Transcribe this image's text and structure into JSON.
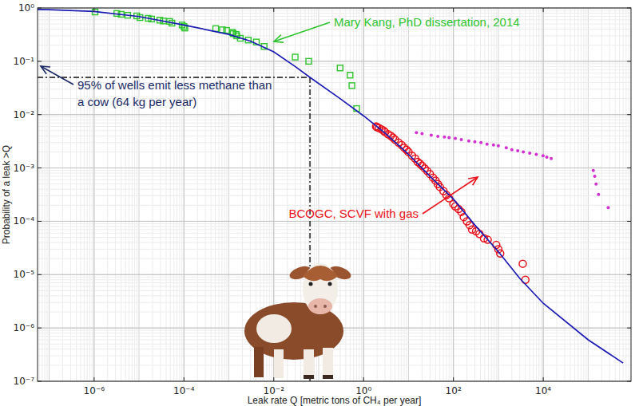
{
  "chart_data": {
    "type": "scatter",
    "xlabel": "Leak rate Q [metric tons of CH₄ per year]",
    "ylabel": "Probability of a leak >Q",
    "log": true,
    "grid": true,
    "xlim": [
      5.5e-08,
      900000
    ],
    "ylim": [
      1e-07,
      1
    ],
    "xticks": [
      {
        "value": 1e-06,
        "label": "10⁻⁶"
      },
      {
        "value": 0.0001,
        "label": "10⁻⁴"
      },
      {
        "value": 0.01,
        "label": "10⁻²"
      },
      {
        "value": 1,
        "label": "10⁰"
      },
      {
        "value": 100,
        "label": "10²"
      },
      {
        "value": 10000,
        "label": "10⁴"
      }
    ],
    "yticks": [
      {
        "value": 1e-07,
        "label": "10⁻⁷"
      },
      {
        "value": 1e-06,
        "label": "10⁻⁶"
      },
      {
        "value": 1e-05,
        "label": "10⁻⁵"
      },
      {
        "value": 0.0001,
        "label": "10⁻⁴"
      },
      {
        "value": 0.001,
        "label": "10⁻³"
      },
      {
        "value": 0.01,
        "label": "10⁻²"
      },
      {
        "value": 0.1,
        "label": "10⁻¹"
      },
      {
        "value": 1,
        "label": "10⁰"
      }
    ],
    "series": [
      {
        "name": "Mary Kang, PhD dissertation, 2014",
        "type": "scatter",
        "marker": "square-open",
        "color": "#2fc42f",
        "x": [
          1.05e-06,
          3.2e-06,
          4e-06,
          5.6e-06,
          8.9e-06,
          1.05e-05,
          1.6e-05,
          1.9e-05,
          2.9e-05,
          3.5e-05,
          4.8e-05,
          5.4e-05,
          9.1e-05,
          0.0001,
          0.000105,
          0.00051,
          0.00072,
          0.00089,
          0.0012,
          0.00125,
          0.00145,
          0.0015,
          0.0018,
          0.0027,
          0.0041,
          0.0061,
          0.03,
          0.06,
          0.3,
          0.5,
          0.55,
          0.7
        ],
        "values": [
          0.84,
          0.79,
          0.76,
          0.73,
          0.71,
          0.66,
          0.64,
          0.62,
          0.59,
          0.57,
          0.56,
          0.52,
          0.48,
          0.45,
          0.42,
          0.41,
          0.39,
          0.38,
          0.35,
          0.33,
          0.32,
          0.3,
          0.27,
          0.25,
          0.23,
          0.19,
          0.12,
          0.1,
          0.075,
          0.055,
          0.035,
          0.013
        ]
      },
      {
        "name": "BCOGC, SCVF with gas",
        "type": "scatter",
        "marker": "circle-open",
        "color": "#e8121b",
        "x": [
          1.9,
          2,
          2.2,
          2.5,
          2.8,
          3,
          3.5,
          4,
          4.5,
          5,
          6,
          7,
          8,
          9,
          10,
          12,
          14,
          16,
          18,
          20,
          23,
          26,
          30,
          35,
          40,
          45,
          50,
          60,
          70,
          80,
          100,
          110,
          130,
          150,
          170,
          200,
          230,
          260,
          320,
          380,
          480,
          580,
          900,
          1000,
          1100,
          3500,
          4000
        ],
        "values": [
          0.006,
          0.0058,
          0.0056,
          0.0053,
          0.005,
          0.0047,
          0.0043,
          0.004,
          0.0037,
          0.0034,
          0.003,
          0.0027,
          0.0024,
          0.0022,
          0.002,
          0.0017,
          0.0015,
          0.0013,
          0.0012,
          0.0011,
          0.00098,
          0.00088,
          0.00077,
          0.00066,
          0.00058,
          0.0005,
          0.00044,
          0.00037,
          0.00031,
          0.00027,
          0.00021,
          0.00019,
          0.00017,
          0.00015,
          0.00012,
          0.0001,
          8.5e-05,
          7e-05,
          6.5e-05,
          5.8e-05,
          4.8e-05,
          4.5e-05,
          3.6e-05,
          3e-05,
          2.5e-05,
          1.6e-05,
          8e-06
        ]
      },
      {
        "type": "scatter",
        "marker": "dot",
        "color": "#d22fd2",
        "x": [
          15,
          20,
          32,
          45,
          63,
          80,
          110,
          150,
          220,
          300,
          410,
          560,
          780,
          1000,
          1500,
          2000,
          2700,
          3600,
          5000,
          7000,
          9900,
          12000,
          15000,
          130000,
          140000,
          150000,
          170000,
          280000
        ],
        "values": [
          0.0046,
          0.0044,
          0.0041,
          0.0039,
          0.0038,
          0.0037,
          0.0036,
          0.0034,
          0.0032,
          0.0031,
          0.003,
          0.0028,
          0.0027,
          0.0026,
          0.0024,
          0.0022,
          0.0021,
          0.002,
          0.0019,
          0.0018,
          0.0017,
          0.0016,
          0.0015,
          0.0009,
          0.0007,
          0.0005,
          0.00032,
          0.00018
        ]
      },
      {
        "type": "line",
        "line_style": "solid",
        "color": "#1c1cb4",
        "x": [
          5.5e-08,
          1e-07,
          1e-06,
          1e-05,
          0.0001,
          0.001,
          0.003,
          0.01,
          0.03,
          0.064,
          0.3,
          1,
          3,
          10,
          30,
          100,
          300,
          1000,
          3000,
          10000,
          100000,
          600000
        ],
        "values": [
          0.94,
          0.93,
          0.86,
          0.69,
          0.48,
          0.32,
          0.24,
          0.15,
          0.08,
          0.05,
          0.02,
          0.0095,
          0.0045,
          0.0018,
          0.0007,
          0.00026,
          8.5e-05,
          2.7e-05,
          8.5e-06,
          2.9e-06,
          6e-07,
          2.2e-07
        ]
      }
    ],
    "reference_point": {
      "x": 0.064,
      "y": 0.05
    },
    "annotations": [
      "95% of wells emit less methane than",
      "a cow (64 kg per year)"
    ]
  }
}
